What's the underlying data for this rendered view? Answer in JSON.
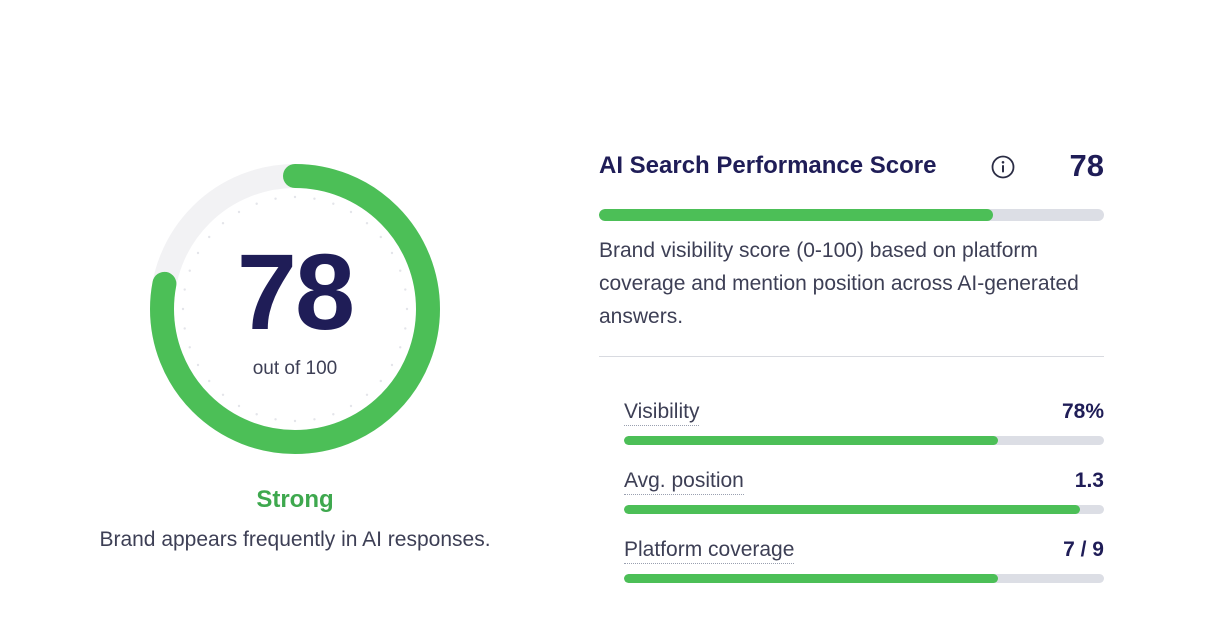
{
  "gauge": {
    "score": "78",
    "subtitle": "out of 100",
    "fraction": 0.78,
    "track_color": "#f2f2f4",
    "fill_color": "#4cbf57"
  },
  "rating": {
    "label": "Strong",
    "description": "Brand appears frequently in AI responses.",
    "color": "#3ea84e"
  },
  "panel": {
    "title": "AI Search Performance Score",
    "info_icon": "info-circle-icon",
    "score": "78",
    "score_fraction": 0.78,
    "description": "Brand visibility score (0-100) based on platform coverage and mention position across AI-generated answers."
  },
  "metrics": [
    {
      "label": "Visibility",
      "value": "78%",
      "fraction": 0.78
    },
    {
      "label": "Avg. position",
      "value": "1.3",
      "fraction": 0.95
    },
    {
      "label": "Platform coverage",
      "value": "7 / 9",
      "fraction": 0.78
    }
  ],
  "colors": {
    "accent_green": "#4cbf57",
    "navy": "#1f1d57",
    "text": "#3d3f55",
    "bar_track": "#dcdee5"
  }
}
